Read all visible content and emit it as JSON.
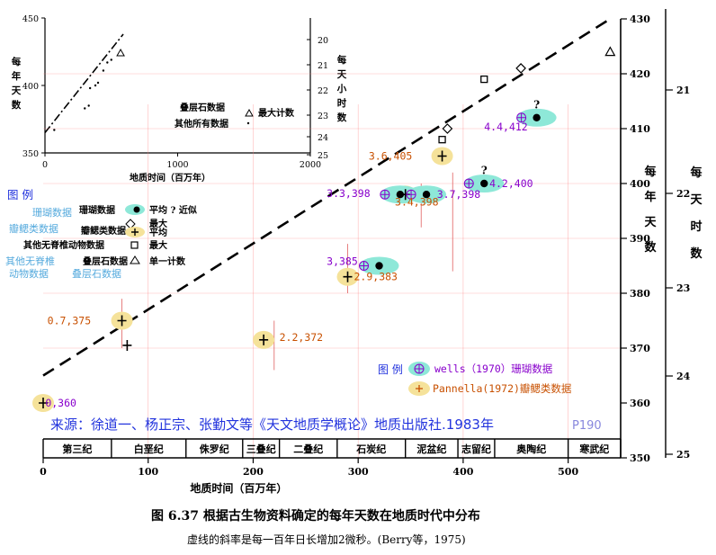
{
  "chart_data": [
    {
      "type": "scatter",
      "id": "main",
      "title": "图 6.37  根据古生物资料确定的每年天数在地质时代中分布",
      "subtitle": "虚线的斜率是每一百年日长增加2微秒。(Berry等，1975)",
      "xlabel": "地质时间（百万年）",
      "ylabel_right": "每年天数",
      "ylabel_far_right": "每天时数",
      "xlim": [
        0,
        550
      ],
      "ylim": [
        350,
        430
      ],
      "xticks": [
        "0",
        "100",
        "200",
        "300",
        "400",
        "500"
      ],
      "yticks_right": [
        "350",
        "360",
        "370",
        "380",
        "390",
        "400",
        "410",
        "420",
        "430"
      ],
      "hours_scale": [
        "21",
        "22",
        "23",
        "24",
        "25"
      ],
      "grid": true,
      "trend_line": {
        "x": [
          0,
          540
        ],
        "y": [
          365,
          430
        ],
        "style": "dashed"
      },
      "periods": [
        "第三纪",
        "白垩纪",
        "侏罗纪",
        "三叠纪",
        "二叠纪",
        "石炭纪",
        "泥盆纪",
        "志留纪",
        "奥陶纪",
        "寒武纪"
      ],
      "period_bounds": [
        0,
        65,
        136,
        190,
        225,
        280,
        345,
        395,
        430,
        500,
        550
      ],
      "points": [
        {
          "x": 0,
          "y": 360,
          "marker": "plus",
          "highlight": "yellow"
        },
        {
          "x": 75,
          "y": 375,
          "marker": "plus",
          "highlight": "yellow"
        },
        {
          "x": 80,
          "y": 370.5,
          "marker": "plus",
          "highlight": "none"
        },
        {
          "x": 210,
          "y": 371.5,
          "marker": "plus",
          "highlight": "yellow"
        },
        {
          "x": 290,
          "y": 383,
          "marker": "plus",
          "highlight": "yellow"
        },
        {
          "x": 320,
          "y": 385,
          "marker": "dot",
          "highlight": "cyan"
        },
        {
          "x": 345,
          "y": 398,
          "marker": "plus",
          "highlight": "yellow"
        },
        {
          "x": 340,
          "y": 398,
          "marker": "dot",
          "highlight": "cyan"
        },
        {
          "x": 365,
          "y": 398,
          "marker": "dot",
          "highlight": "cyan"
        },
        {
          "x": 380,
          "y": 405,
          "marker": "plus",
          "highlight": "yellow"
        },
        {
          "x": 380,
          "y": 408,
          "marker": "square",
          "highlight": "none"
        },
        {
          "x": 385,
          "y": 410,
          "marker": "diamond",
          "highlight": "none"
        },
        {
          "x": 420,
          "y": 400,
          "marker": "dot",
          "highlight": "cyan"
        },
        {
          "x": 420,
          "y": 419,
          "marker": "square",
          "highlight": "none"
        },
        {
          "x": 455,
          "y": 421,
          "marker": "diamond",
          "highlight": "none"
        },
        {
          "x": 470,
          "y": 412,
          "marker": "dot",
          "highlight": "cyan"
        },
        {
          "x": 540,
          "y": 424,
          "marker": "triangle",
          "highlight": "none"
        }
      ],
      "question_marks": [
        {
          "x": 420,
          "y": 401.7
        },
        {
          "x": 470,
          "y": 413.7
        }
      ],
      "error_bars": [
        {
          "x": 75,
          "y0": 370,
          "y1": 379
        },
        {
          "x": 220,
          "y0": 366,
          "y1": 375
        },
        {
          "x": 290,
          "y0": 380,
          "y1": 389
        },
        {
          "x": 390,
          "y0": 384,
          "y1": 402
        },
        {
          "x": 360,
          "y0": 392,
          "y1": 400
        }
      ],
      "annotations": [
        {
          "text": "0,360",
          "x": 2,
          "y": 360,
          "color": "#8800cc"
        },
        {
          "text": "0.7,375",
          "x": 4,
          "y": 375,
          "color": "#c85000"
        },
        {
          "text": "2.2,372",
          "x": 225,
          "y": 372,
          "color": "#c85000"
        },
        {
          "text": "3,385",
          "x": 270,
          "y": 385.8,
          "color": "#8800cc"
        },
        {
          "text": "2.9,383",
          "x": 296,
          "y": 383,
          "color": "#c85000"
        },
        {
          "text": "3.3,398",
          "x": 270,
          "y": 398.2,
          "color": "#8800cc"
        },
        {
          "text": "3.4,398",
          "x": 335,
          "y": 396.6,
          "color": "#c85000"
        },
        {
          "text": "3.7,398",
          "x": 375,
          "y": 398,
          "color": "#8800cc"
        },
        {
          "text": "3.6,405",
          "x": 310,
          "y": 405,
          "color": "#c85000"
        },
        {
          "text": "4.2,400",
          "x": 425,
          "y": 400,
          "color": "#8800cc"
        },
        {
          "text": "4.4,412",
          "x": 420,
          "y": 410.3,
          "color": "#8800cc"
        }
      ]
    },
    {
      "type": "scatter",
      "id": "inset",
      "xlabel": "地质时间（百万年）",
      "ylabel": "每年天数",
      "ylabel_right": "每天小时数",
      "xlim": [
        0,
        2000
      ],
      "ylim": [
        350,
        450
      ],
      "xticks": [
        "0",
        "1000",
        "2000"
      ],
      "yticks": [
        "350",
        "400",
        "450"
      ],
      "hours_ticks": [
        "20",
        "21",
        "22",
        "23",
        "24",
        "25"
      ],
      "trend_line": {
        "x": [
          0,
          590
        ],
        "y": [
          365,
          438
        ],
        "style": "dash-dot"
      },
      "stromatolite_points": [
        {
          "x": 70,
          "y": 367
        },
        {
          "x": 300,
          "y": 383
        },
        {
          "x": 330,
          "y": 385
        },
        {
          "x": 340,
          "y": 398
        },
        {
          "x": 380,
          "y": 400
        },
        {
          "x": 400,
          "y": 402
        },
        {
          "x": 440,
          "y": 411
        },
        {
          "x": 470,
          "y": 417
        },
        {
          "x": 500,
          "y": 419
        }
      ],
      "max_count": {
        "x": 570,
        "y": 424
      },
      "legend": {
        "line1": "叠层石数据",
        "line2": "其他所有数据",
        "max_label": "最大计数"
      }
    }
  ],
  "legend_main": {
    "heading": "图  例",
    "rows": [
      {
        "left": "珊瑚数据",
        "mid": "珊瑚数据",
        "right": "平均 ? 近似"
      },
      {
        "left": "",
        "mid": "",
        "right": "最大"
      },
      {
        "left": "瓣鳃类数据",
        "mid": "瓣鳃类数据",
        "right": "平均"
      },
      {
        "left": "",
        "mid": "其他无脊椎动物数据",
        "right": "最大"
      },
      {
        "left": "其他无脊椎",
        "mid": "叠层石数据",
        "right": "单一计数"
      },
      {
        "left": "动物数据",
        "mid": "",
        "right": ""
      },
      {
        "left": "叠层石数据",
        "mid": "",
        "right": ""
      }
    ]
  },
  "legend_overlay": {
    "heading": "图 例",
    "wells": "wells（1970）珊瑚数据",
    "pannella": "Pannella(1972)瓣鳃类数据"
  },
  "source": {
    "label": "来源：徐道一、杨正宗、张勤文等《天文地质学概论》地质出版社.1983年",
    "page": "P190"
  },
  "colors": {
    "cyan": "#8ee8d8",
    "yellow": "#f5e29a",
    "purple": "#8800cc",
    "orange": "#c85000",
    "blue": "#2233dd",
    "light_blue": "#55aadd",
    "grid": "#ff8080",
    "pink": "#e080e8"
  }
}
